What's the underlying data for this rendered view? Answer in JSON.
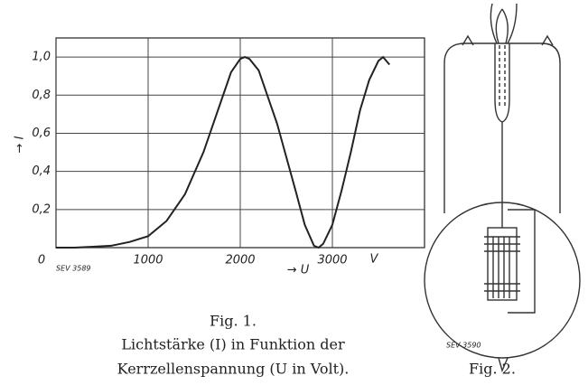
{
  "chart_data": {
    "type": "line",
    "y_label": "→ I",
    "x_label": "→ U",
    "x_unit": "V",
    "code": "SEV 3589",
    "x": [
      0,
      200,
      400,
      600,
      800,
      1000,
      1200,
      1400,
      1600,
      1800,
      1900,
      2000,
      2050,
      2100,
      2200,
      2400,
      2600,
      2700,
      2800,
      2850,
      2900,
      3000,
      3100,
      3200,
      3300,
      3400,
      3500,
      3550,
      3620
    ],
    "series": [
      {
        "color": "#222222",
        "values": [
          0,
          0,
          0.005,
          0.01,
          0.03,
          0.06,
          0.14,
          0.28,
          0.5,
          0.78,
          0.92,
          0.99,
          1.0,
          0.99,
          0.93,
          0.65,
          0.3,
          0.12,
          0.01,
          0,
          0.02,
          0.12,
          0.3,
          0.5,
          0.72,
          0.88,
          0.98,
          1.0,
          0.96
        ]
      }
    ],
    "xlim": [
      0,
      4000
    ],
    "ylim": [
      0,
      1.1
    ],
    "xticks": [
      0,
      1000,
      2000,
      3000
    ],
    "yticks": [
      {
        "value": 0.2,
        "label": "0,2"
      },
      {
        "value": 0.4,
        "label": "0,4"
      },
      {
        "value": 0.6,
        "label": "0,6"
      },
      {
        "value": 0.8,
        "label": "0,8"
      },
      {
        "value": 1.0,
        "label": "1,0"
      }
    ],
    "grid": true
  },
  "fig1": {
    "label": "Fig. 1.",
    "caption": [
      "Lichtstärke (I) in Funktion der",
      "Kerrzellenspannung (U in Volt)."
    ]
  },
  "fig2": {
    "label": "Fig. 2.",
    "code": "SEV 3590"
  }
}
